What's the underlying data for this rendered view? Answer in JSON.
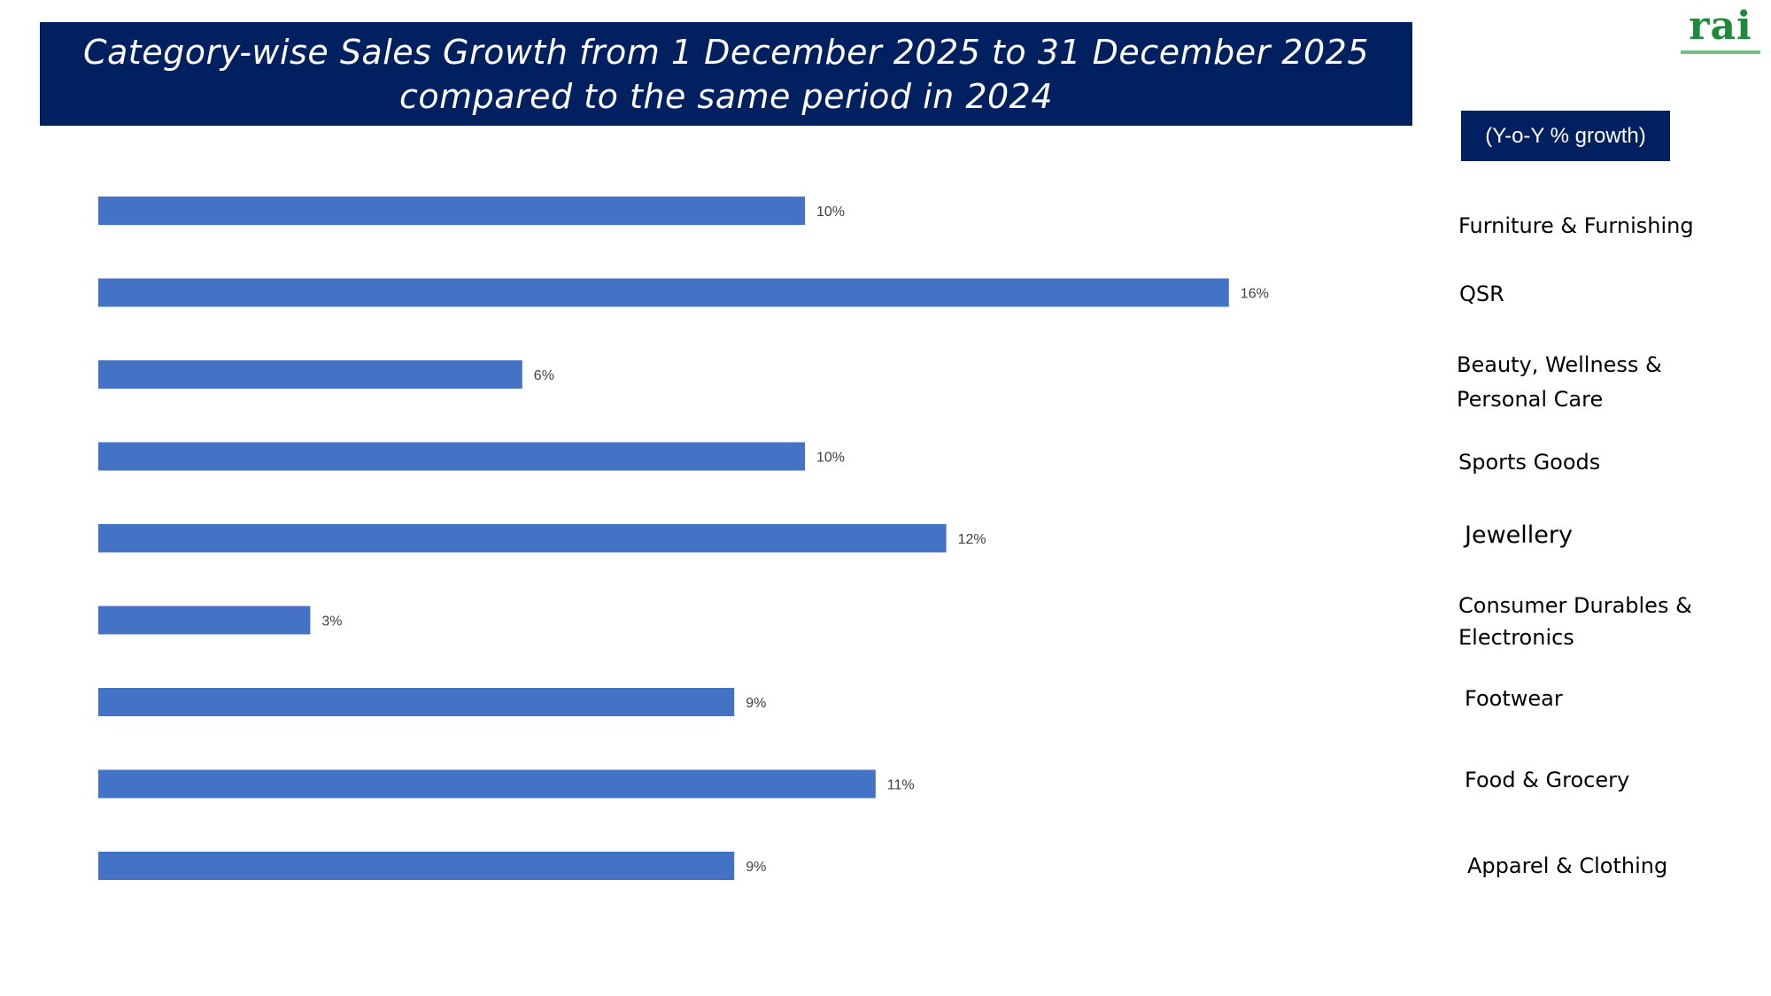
{
  "title_line1": "Category-wise Sales Growth from 1 December 2025 to 31 December 2025",
  "title_line2": "compared to the same period in 2024",
  "logo_text": "rai",
  "unit_label": "(Y-o-Y % growth)",
  "colors": {
    "bar": "#4472C4",
    "banner": "#002060",
    "logo": "#1e8a3a"
  },
  "chart_data": {
    "type": "bar",
    "orientation": "horizontal",
    "categories": [
      "Furniture &  Furnishing",
      "QSR",
      "Beauty, Wellness & Personal Care",
      "Sports Goods",
      "Jewellery",
      "Consumer Durables & Electronics",
      "Footwear",
      "Food & Grocery",
      "Apparel & Clothing"
    ],
    "values": [
      10,
      16,
      6,
      10,
      12,
      3,
      9,
      11,
      9
    ],
    "value_labels": [
      "10%",
      "16%",
      "6%",
      "10%",
      "12%",
      "3%",
      "9%",
      "11%",
      "9%"
    ],
    "xlim": [
      0,
      18
    ],
    "grid": false,
    "legend": "none"
  }
}
